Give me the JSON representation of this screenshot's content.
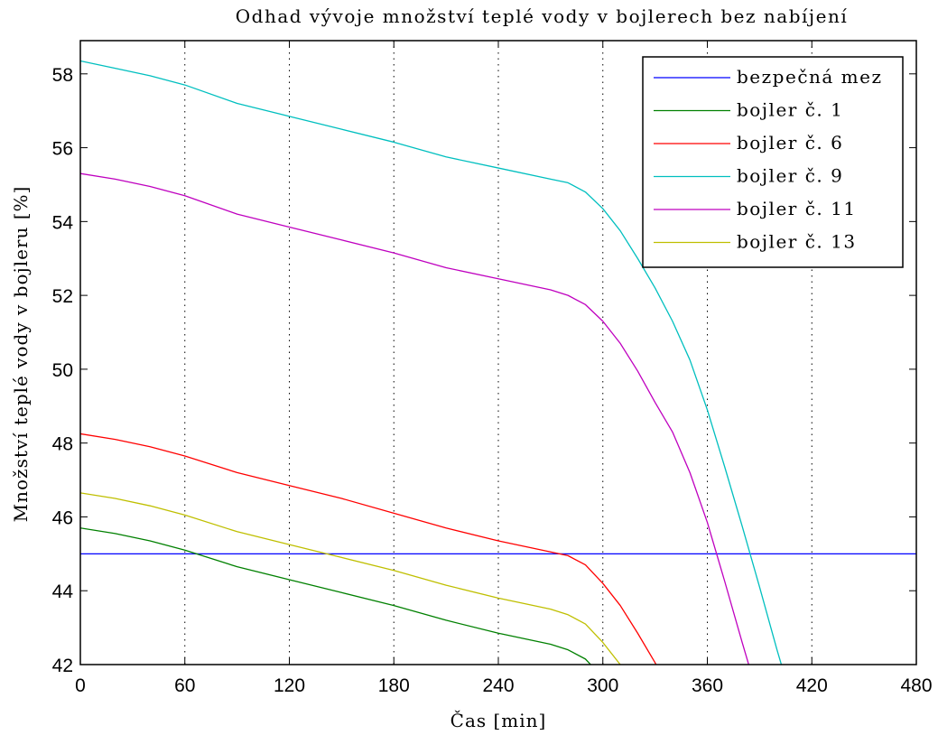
{
  "chart_data": {
    "type": "line",
    "title": "Odhad vývoje množství teplé vody v bojlerech bez nabíjení",
    "xlabel": "Čas [min]",
    "ylabel": "Množství teplé vody v bojleru [%]",
    "xlim": [
      0,
      480
    ],
    "ylim": [
      42,
      58.9
    ],
    "xticks": [
      0,
      60,
      120,
      180,
      240,
      300,
      360,
      420,
      480
    ],
    "yticks": [
      42,
      44,
      46,
      48,
      50,
      52,
      54,
      56,
      58
    ],
    "grid": "vertical-dotted",
    "legend_position": "top-right",
    "series": [
      {
        "name": "bezpečná mez",
        "color": "#0000ff",
        "x": [
          0,
          480
        ],
        "y": [
          45,
          45
        ]
      },
      {
        "name": "bojler č. 1",
        "color": "#008000",
        "x": [
          0,
          20,
          40,
          60,
          90,
          120,
          150,
          180,
          210,
          240,
          270,
          280,
          290,
          295
        ],
        "y": [
          45.7,
          45.55,
          45.35,
          45.1,
          44.65,
          44.3,
          43.95,
          43.6,
          43.2,
          42.85,
          42.55,
          42.4,
          42.15,
          41.9
        ]
      },
      {
        "name": "bojler č. 6",
        "color": "#ff0000",
        "x": [
          0,
          20,
          40,
          60,
          90,
          120,
          150,
          180,
          210,
          240,
          270,
          280,
          290,
          300,
          310,
          320,
          330,
          335
        ],
        "y": [
          48.25,
          48.1,
          47.9,
          47.65,
          47.2,
          46.85,
          46.5,
          46.1,
          45.7,
          45.35,
          45.05,
          44.95,
          44.7,
          44.2,
          43.6,
          42.85,
          42.05,
          41.6
        ]
      },
      {
        "name": "bojler č. 9",
        "color": "#00bfbf",
        "x": [
          0,
          20,
          40,
          60,
          90,
          120,
          150,
          180,
          210,
          240,
          270,
          280,
          290,
          300,
          310,
          320,
          330,
          340,
          350,
          360,
          370,
          380,
          390,
          400,
          405
        ],
        "y": [
          58.35,
          58.15,
          57.95,
          57.7,
          57.2,
          56.85,
          56.5,
          56.15,
          55.75,
          55.45,
          55.15,
          55.05,
          54.8,
          54.35,
          53.75,
          53.0,
          52.2,
          51.3,
          50.25,
          48.9,
          47.35,
          45.75,
          44.1,
          42.4,
          41.6
        ]
      },
      {
        "name": "bojler č. 11",
        "color": "#bf00bf",
        "x": [
          0,
          20,
          40,
          60,
          90,
          120,
          150,
          180,
          210,
          240,
          270,
          280,
          290,
          300,
          310,
          320,
          330,
          340,
          350,
          360,
          370,
          380,
          385
        ],
        "y": [
          55.3,
          55.15,
          54.95,
          54.7,
          54.2,
          53.85,
          53.5,
          53.15,
          52.75,
          52.45,
          52.15,
          52.0,
          51.75,
          51.3,
          50.7,
          49.95,
          49.1,
          48.3,
          47.2,
          45.85,
          44.25,
          42.6,
          41.8
        ]
      },
      {
        "name": "bojler č. 13",
        "color": "#bfbf00",
        "x": [
          0,
          20,
          40,
          60,
          90,
          120,
          150,
          180,
          210,
          240,
          270,
          280,
          290,
          300,
          310,
          315
        ],
        "y": [
          46.65,
          46.5,
          46.3,
          46.05,
          45.6,
          45.25,
          44.9,
          44.55,
          44.15,
          43.8,
          43.5,
          43.35,
          43.1,
          42.6,
          42.0,
          41.7
        ]
      }
    ]
  }
}
